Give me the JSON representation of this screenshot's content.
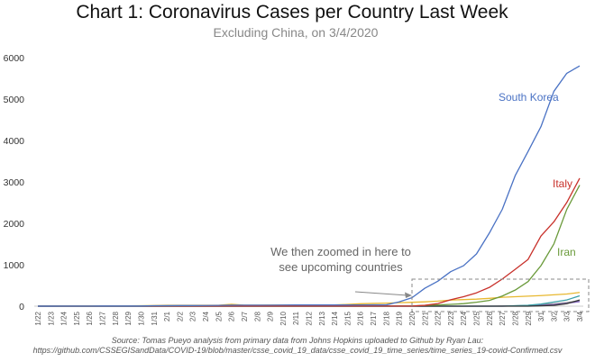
{
  "header": {
    "title": "Chart 1: Coronavirus Cases per Country Last Week",
    "subtitle": "Excluding China, on 3/4/2020"
  },
  "annotation": {
    "line1": "We then zoomed in here to",
    "line2": "see upcoming countries"
  },
  "source": {
    "line1": "Source: Tomas Pueyo analysis from primary data from Johns Hopkins uploaded to Github by Ryan Lau:",
    "line2": "https://github.com/CSSEGISandData/COVID-19/blob/master/csse_covid_19_data/csse_covid_19_time_series/time_series_19-covid-Confirmed.csv"
  },
  "chart_data": {
    "type": "line",
    "title": "Chart 1: Coronavirus Cases per Country Last Week",
    "subtitle": "Excluding China, on 3/4/2020",
    "xlabel": "",
    "ylabel": "",
    "ylim": [
      0,
      6000
    ],
    "yticks": [
      0,
      1000,
      2000,
      3000,
      4000,
      5000,
      6000
    ],
    "grid": false,
    "legend": "inline labels at line ends",
    "categories": [
      "1/22",
      "1/23",
      "1/24",
      "1/25",
      "1/26",
      "1/27",
      "1/28",
      "1/29",
      "1/30",
      "1/31",
      "2/1",
      "2/2",
      "2/3",
      "2/4",
      "2/5",
      "2/6",
      "2/7",
      "2/8",
      "2/9",
      "2/10",
      "2/11",
      "2/12",
      "2/13",
      "2/14",
      "2/15",
      "2/16",
      "2/17",
      "2/18",
      "2/19",
      "2/20",
      "2/21",
      "2/22",
      "2/23",
      "2/24",
      "2/25",
      "2/26",
      "2/27",
      "2/28",
      "2/29",
      "3/1",
      "3/2",
      "3/3",
      "3/4"
    ],
    "series": [
      {
        "name": "South Korea",
        "color": "#4a72c4",
        "values": [
          1,
          1,
          2,
          2,
          3,
          4,
          4,
          4,
          4,
          11,
          12,
          15,
          15,
          16,
          19,
          23,
          24,
          24,
          25,
          27,
          28,
          28,
          28,
          28,
          29,
          30,
          31,
          31,
          104,
          204,
          433,
          602,
          833,
          977,
          1261,
          1766,
          2337,
          3150,
          3736,
          4335,
          5186,
          5621,
          5800
        ]
      },
      {
        "name": "Italy",
        "color": "#c8302a",
        "values": [
          0,
          0,
          0,
          0,
          0,
          0,
          0,
          0,
          0,
          2,
          2,
          2,
          2,
          2,
          2,
          2,
          3,
          3,
          3,
          3,
          3,
          3,
          3,
          3,
          3,
          3,
          3,
          3,
          3,
          3,
          20,
          62,
          155,
          229,
          322,
          453,
          655,
          888,
          1128,
          1694,
          2036,
          2502,
          3089
        ]
      },
      {
        "name": "Iran",
        "color": "#6a9a3a",
        "values": [
          0,
          0,
          0,
          0,
          0,
          0,
          0,
          0,
          0,
          0,
          0,
          0,
          0,
          0,
          0,
          0,
          0,
          0,
          0,
          0,
          0,
          0,
          0,
          0,
          0,
          0,
          0,
          0,
          2,
          5,
          18,
          28,
          43,
          61,
          95,
          139,
          245,
          388,
          593,
          978,
          1501,
          2336,
          2922
        ]
      },
      {
        "name": "",
        "color": "#e8b830",
        "values": [
          2,
          2,
          2,
          2,
          4,
          4,
          7,
          7,
          11,
          15,
          20,
          20,
          20,
          22,
          22,
          45,
          25,
          25,
          26,
          26,
          26,
          28,
          28,
          29,
          43,
          59,
          66,
          74,
          84,
          94,
          105,
          122,
          147,
          159,
          170,
          189,
          214,
          228,
          241,
          256,
          274,
          293,
          331
        ]
      },
      {
        "name": "",
        "color": "#333333",
        "values": [
          0,
          0,
          0,
          0,
          0,
          0,
          0,
          0,
          0,
          0,
          0,
          0,
          0,
          0,
          0,
          0,
          0,
          0,
          0,
          0,
          0,
          0,
          0,
          0,
          0,
          0,
          0,
          0,
          0,
          0,
          0,
          0,
          0,
          0,
          0,
          0,
          0,
          0,
          0,
          10,
          20,
          60,
          150
        ]
      },
      {
        "name": "",
        "color": "#3aa0a8",
        "values": [
          0,
          0,
          0,
          0,
          0,
          0,
          0,
          0,
          0,
          0,
          0,
          0,
          0,
          0,
          0,
          0,
          0,
          0,
          0,
          0,
          0,
          0,
          0,
          0,
          0,
          0,
          0,
          0,
          0,
          0,
          0,
          0,
          0,
          0,
          0,
          0,
          0,
          10,
          20,
          50,
          100,
          150,
          250
        ]
      },
      {
        "name": "",
        "color": "#8a6ac8",
        "values": [
          0,
          0,
          0,
          0,
          0,
          0,
          0,
          0,
          0,
          0,
          0,
          0,
          0,
          0,
          0,
          0,
          0,
          0,
          0,
          0,
          0,
          0,
          0,
          0,
          0,
          0,
          0,
          0,
          0,
          0,
          0,
          0,
          0,
          0,
          0,
          0,
          0,
          5,
          10,
          20,
          40,
          70,
          110
        ]
      },
      {
        "name": "",
        "color": "#a0a0a0",
        "values": [
          0,
          0,
          0,
          0,
          0,
          0,
          0,
          0,
          0,
          0,
          0,
          0,
          0,
          0,
          0,
          0,
          0,
          0,
          0,
          0,
          0,
          0,
          0,
          0,
          0,
          0,
          0,
          0,
          0,
          0,
          0,
          0,
          0,
          0,
          0,
          0,
          5,
          10,
          20,
          40,
          60,
          90,
          130
        ]
      }
    ]
  }
}
